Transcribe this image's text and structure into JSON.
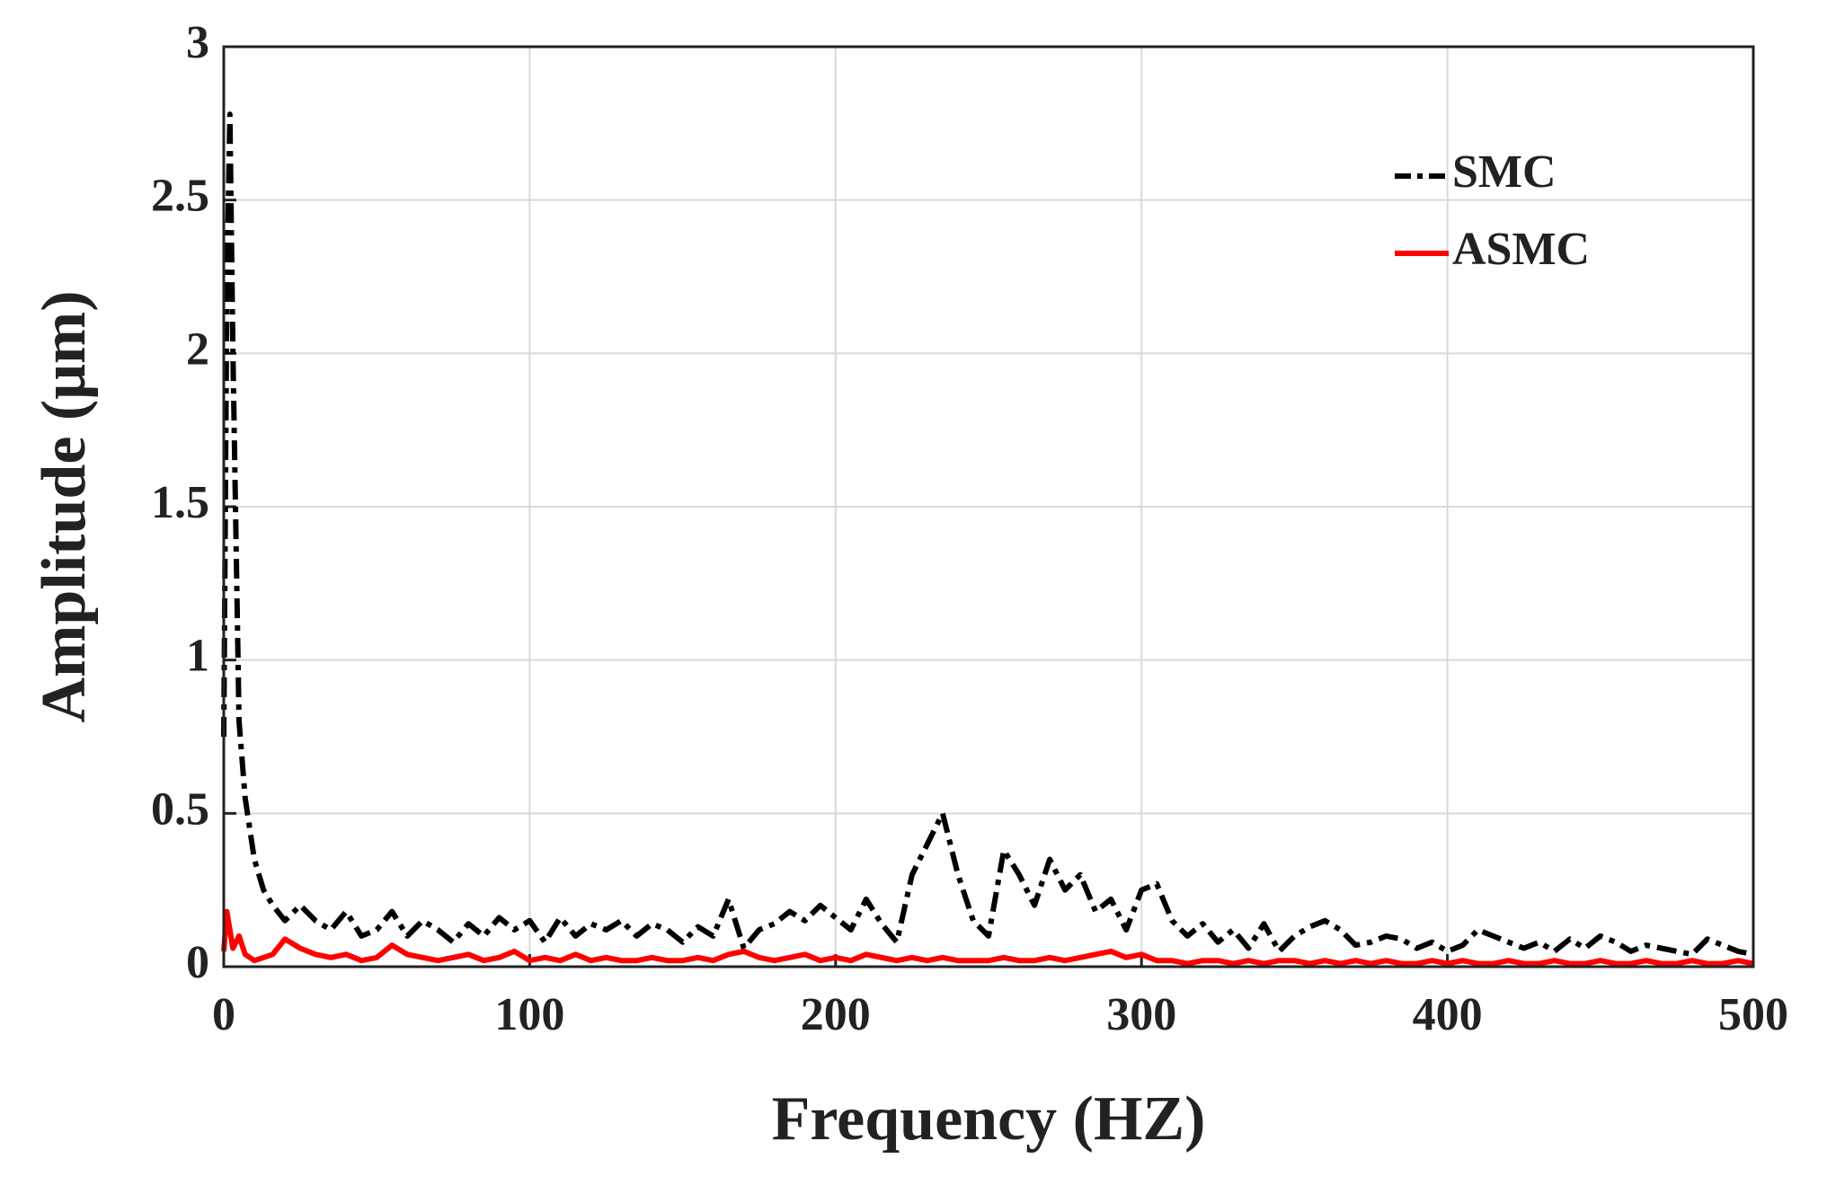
{
  "chart_data": {
    "type": "line",
    "x_label": "Frequency (HZ)",
    "y_label": "Amplitude (μm)",
    "x": [
      0,
      1,
      2,
      3,
      5,
      7,
      10,
      13,
      16,
      20,
      25,
      30,
      35,
      40,
      45,
      50,
      55,
      60,
      65,
      70,
      75,
      80,
      85,
      90,
      95,
      100,
      105,
      110,
      115,
      120,
      125,
      130,
      135,
      140,
      145,
      150,
      155,
      160,
      165,
      170,
      175,
      180,
      185,
      190,
      195,
      200,
      205,
      210,
      215,
      220,
      225,
      230,
      235,
      240,
      245,
      250,
      255,
      260,
      265,
      270,
      275,
      280,
      285,
      290,
      295,
      300,
      305,
      310,
      315,
      320,
      325,
      330,
      335,
      340,
      345,
      350,
      355,
      360,
      365,
      370,
      375,
      380,
      385,
      390,
      395,
      400,
      405,
      410,
      415,
      420,
      425,
      430,
      435,
      440,
      445,
      450,
      455,
      460,
      465,
      470,
      475,
      480,
      485,
      490,
      495,
      500
    ],
    "series": [
      {
        "name": "SMC",
        "color": "#000000",
        "dash": "dashdot",
        "values": [
          0.75,
          2.2,
          2.78,
          2.0,
          0.8,
          0.55,
          0.35,
          0.25,
          0.2,
          0.15,
          0.2,
          0.15,
          0.12,
          0.18,
          0.1,
          0.12,
          0.18,
          0.1,
          0.15,
          0.12,
          0.08,
          0.14,
          0.1,
          0.16,
          0.12,
          0.15,
          0.08,
          0.16,
          0.1,
          0.14,
          0.12,
          0.15,
          0.1,
          0.14,
          0.12,
          0.08,
          0.13,
          0.1,
          0.22,
          0.06,
          0.12,
          0.14,
          0.18,
          0.15,
          0.2,
          0.16,
          0.12,
          0.22,
          0.14,
          0.08,
          0.3,
          0.4,
          0.5,
          0.3,
          0.15,
          0.1,
          0.38,
          0.3,
          0.2,
          0.35,
          0.25,
          0.3,
          0.18,
          0.22,
          0.12,
          0.25,
          0.27,
          0.15,
          0.1,
          0.14,
          0.08,
          0.12,
          0.06,
          0.14,
          0.05,
          0.1,
          0.13,
          0.15,
          0.12,
          0.07,
          0.08,
          0.1,
          0.09,
          0.06,
          0.08,
          0.05,
          0.07,
          0.12,
          0.1,
          0.08,
          0.06,
          0.08,
          0.05,
          0.09,
          0.06,
          0.1,
          0.08,
          0.05,
          0.07,
          0.06,
          0.05,
          0.04,
          0.09,
          0.07,
          0.05,
          0.04
        ]
      },
      {
        "name": "ASMC",
        "color": "#ff0000",
        "dash": "solid",
        "values": [
          0.05,
          0.18,
          0.12,
          0.06,
          0.1,
          0.04,
          0.02,
          0.03,
          0.04,
          0.09,
          0.06,
          0.04,
          0.03,
          0.04,
          0.02,
          0.03,
          0.07,
          0.04,
          0.03,
          0.02,
          0.03,
          0.04,
          0.02,
          0.03,
          0.05,
          0.02,
          0.03,
          0.02,
          0.04,
          0.02,
          0.03,
          0.02,
          0.02,
          0.03,
          0.02,
          0.02,
          0.03,
          0.02,
          0.04,
          0.05,
          0.03,
          0.02,
          0.03,
          0.04,
          0.02,
          0.03,
          0.02,
          0.04,
          0.03,
          0.02,
          0.03,
          0.02,
          0.03,
          0.02,
          0.02,
          0.02,
          0.03,
          0.02,
          0.02,
          0.03,
          0.02,
          0.03,
          0.04,
          0.05,
          0.03,
          0.04,
          0.02,
          0.02,
          0.01,
          0.02,
          0.02,
          0.01,
          0.02,
          0.01,
          0.02,
          0.02,
          0.01,
          0.02,
          0.01,
          0.02,
          0.01,
          0.02,
          0.01,
          0.01,
          0.02,
          0.01,
          0.02,
          0.01,
          0.01,
          0.02,
          0.01,
          0.01,
          0.02,
          0.01,
          0.01,
          0.02,
          0.01,
          0.01,
          0.02,
          0.01,
          0.01,
          0.02,
          0.01,
          0.01,
          0.02,
          0.01
        ]
      }
    ],
    "xlim": [
      0,
      500
    ],
    "xticks": [
      0,
      100,
      200,
      300,
      400,
      500
    ],
    "ylim": [
      0,
      3
    ],
    "yticks": [
      0,
      0.5,
      1,
      1.5,
      2,
      2.5,
      3
    ],
    "grid": true,
    "legend": "upper right"
  }
}
